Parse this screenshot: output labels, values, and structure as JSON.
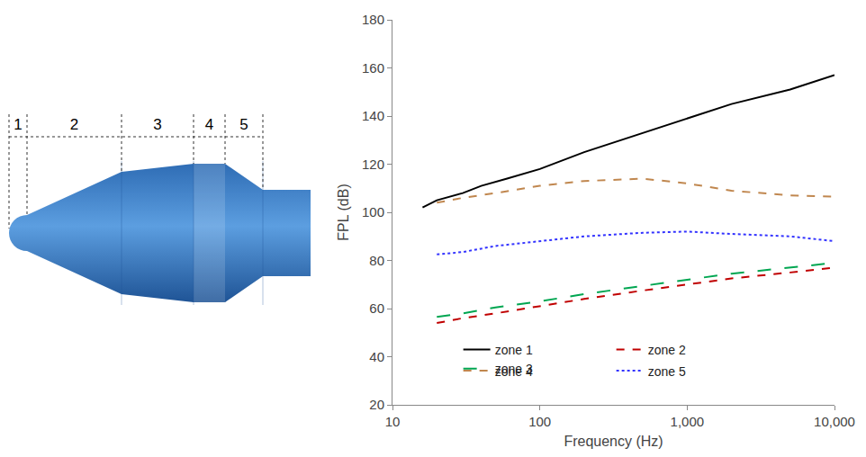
{
  "diagram": {
    "zones": [
      "1",
      "2",
      "3",
      "4",
      "5"
    ]
  },
  "chart_data": {
    "type": "line",
    "x_label": "Frequency (Hz)",
    "y_label": "FPL (dB)",
    "log": "x",
    "grid": false,
    "legend": "bottom",
    "xlim": [
      10,
      10000
    ],
    "xticks": [
      10,
      100,
      {
        "value": 1000,
        "label": "1,000"
      },
      {
        "value": 10000,
        "label": "10,000"
      }
    ],
    "ylim": [
      20,
      180
    ],
    "yticks": [
      20,
      40,
      60,
      80,
      100,
      120,
      140,
      160,
      180
    ],
    "series": [
      {
        "name": "zone 1",
        "color": "#000000",
        "line_style": "solid",
        "x": [
          16,
          20,
          30,
          40,
          60,
          100,
          200,
          500,
          1000,
          2000,
          5000,
          10000
        ],
        "values": [
          102,
          105,
          108,
          111,
          114,
          118,
          125,
          133,
          139,
          145,
          151,
          157
        ]
      },
      {
        "name": "zone 2",
        "color": "#c00000",
        "line_style": "dash",
        "x": [
          20,
          30,
          50,
          100,
          200,
          500,
          1000,
          2000,
          5000,
          10000
        ],
        "values": [
          54,
          56,
          58,
          61,
          64,
          67.5,
          70,
          72.5,
          75,
          77
        ]
      },
      {
        "name": "zone 3",
        "color": "#00a651",
        "line_style": "longdash",
        "x": [
          20,
          30,
          50,
          100,
          200,
          500,
          1000,
          2000,
          5000,
          10000
        ],
        "values": [
          56.5,
          58,
          60.5,
          63,
          66,
          69.5,
          72,
          74.5,
          77,
          79
        ]
      },
      {
        "name": "zone 4",
        "color": "#c0874f",
        "line_style": "dash",
        "x": [
          20,
          30,
          50,
          100,
          200,
          500,
          1000,
          2000,
          5000,
          10000
        ],
        "values": [
          104,
          106,
          108,
          111,
          113,
          114,
          112,
          109,
          107,
          106.5
        ]
      },
      {
        "name": "zone 5",
        "color": "#3333ff",
        "line_style": "dot",
        "x": [
          20,
          30,
          50,
          100,
          200,
          500,
          1000,
          2000,
          5000,
          10000
        ],
        "values": [
          82.5,
          83.5,
          86,
          88,
          90,
          91.5,
          92,
          91,
          90,
          88
        ]
      }
    ]
  }
}
